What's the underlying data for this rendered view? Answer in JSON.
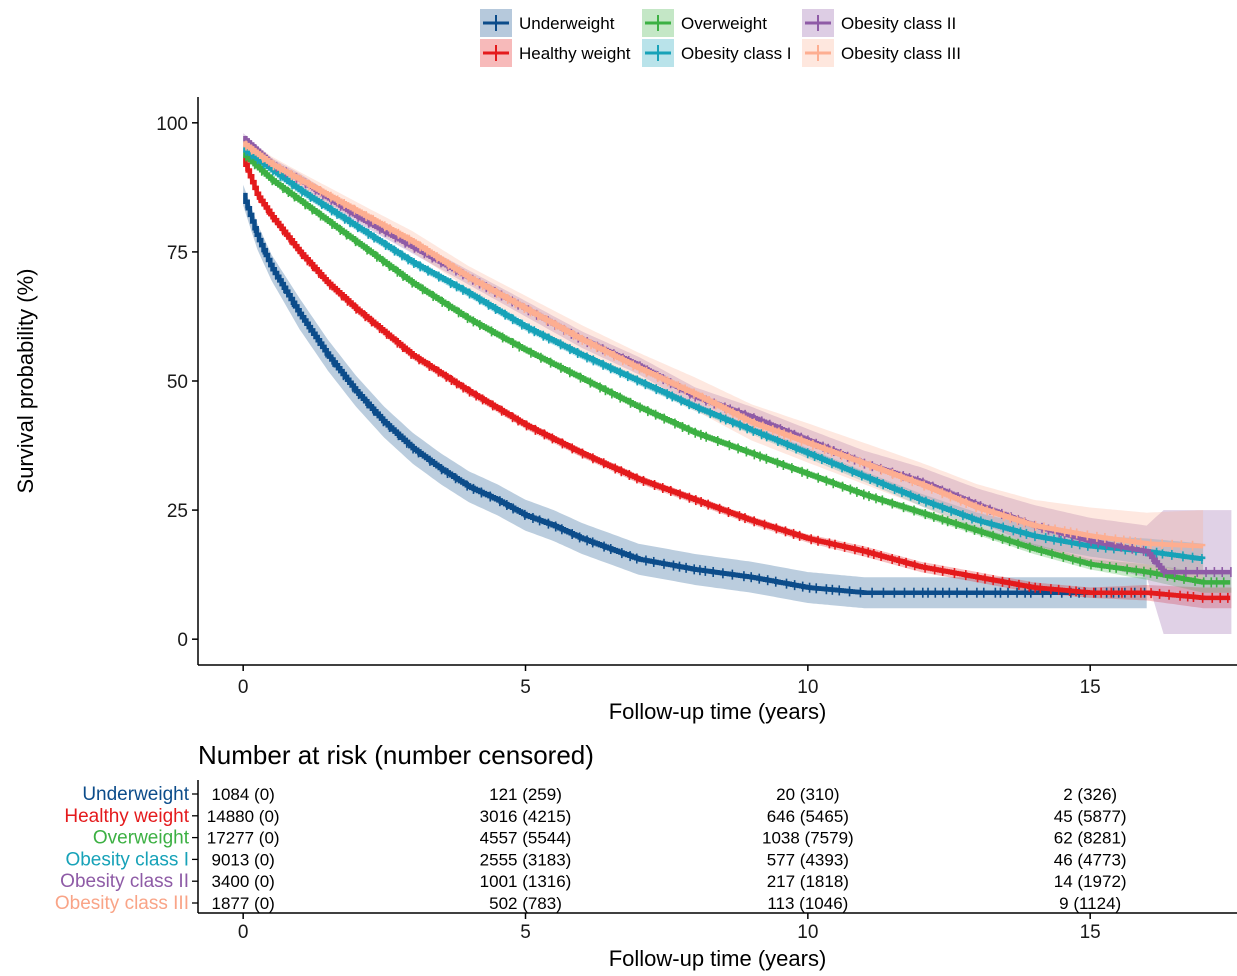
{
  "chart_data": [
    {
      "type": "line",
      "subtype": "kaplan-meier survival curve with confidence bands and censor marks",
      "xlabel": "Follow-up time (years)",
      "ylabel": "Survival probability (%)",
      "xlim": [
        -0.8,
        17.6
      ],
      "ylim": [
        -5,
        105
      ],
      "x_ticks": [
        0,
        5,
        10,
        15
      ],
      "y_ticks": [
        0,
        25,
        50,
        75,
        100
      ],
      "grid": false,
      "legend_position": "top",
      "series": [
        {
          "name": "Underweight",
          "color": "#0C4C8A",
          "x": [
            0,
            0.25,
            0.5,
            1,
            1.5,
            2,
            2.5,
            3,
            3.5,
            4,
            4.5,
            5,
            5.5,
            6,
            6.5,
            7,
            8,
            9,
            10,
            11,
            12,
            13,
            14,
            15,
            16
          ],
          "y": [
            86,
            78,
            72,
            63,
            55,
            48,
            42,
            37,
            33,
            29.5,
            27,
            24,
            22,
            19.5,
            17.5,
            15.5,
            13.5,
            12,
            10,
            9,
            9,
            9,
            9,
            9,
            9
          ],
          "ci_half_width": [
            2,
            2.5,
            2.5,
            3,
            3,
            3,
            3,
            3,
            3,
            3,
            3,
            3,
            3,
            3,
            3,
            3,
            3,
            3,
            3,
            3,
            3,
            3,
            3,
            3,
            3
          ]
        },
        {
          "name": "Healthy weight",
          "color": "#E41A1C",
          "x": [
            0,
            0.25,
            0.5,
            1,
            1.5,
            2,
            3,
            4,
            5,
            6,
            7,
            8,
            9,
            10,
            11,
            12,
            13,
            14,
            15,
            16,
            17,
            17.5
          ],
          "y": [
            93,
            86,
            82,
            75,
            69,
            64,
            55,
            48,
            41.5,
            36,
            31,
            27,
            23,
            19.5,
            17,
            14,
            12,
            10,
            9,
            9,
            8,
            8
          ],
          "ci_half_width": [
            0.8,
            0.8,
            0.8,
            0.8,
            0.8,
            0.8,
            0.8,
            0.8,
            0.8,
            0.8,
            0.8,
            0.8,
            0.8,
            0.8,
            1,
            1,
            1,
            1,
            1,
            1.5,
            2,
            2
          ]
        },
        {
          "name": "Overweight",
          "color": "#3CB043",
          "x": [
            0,
            0.5,
            1,
            2,
            3,
            4,
            5,
            6,
            7,
            8,
            9,
            10,
            11,
            12,
            13,
            14,
            15,
            16,
            17,
            17.5
          ],
          "y": [
            94,
            89,
            85,
            77,
            69,
            62,
            56,
            50.5,
            45,
            40,
            36,
            32,
            28,
            24.5,
            21,
            17.5,
            14.5,
            13,
            11,
            11
          ],
          "ci_half_width": [
            0.6,
            0.6,
            0.6,
            0.6,
            0.6,
            0.6,
            0.6,
            0.6,
            0.6,
            0.6,
            0.6,
            0.6,
            0.6,
            0.8,
            0.8,
            1,
            1,
            1.5,
            2,
            2
          ]
        },
        {
          "name": "Obesity class I",
          "color": "#17A2B8",
          "x": [
            0,
            0.5,
            1,
            2,
            3,
            4,
            5,
            6,
            7,
            8,
            9,
            10,
            11,
            12,
            13,
            14,
            15,
            16,
            17
          ],
          "y": [
            95,
            91,
            87,
            80,
            73,
            67,
            60.5,
            55,
            50,
            45,
            40.5,
            36,
            31.5,
            27,
            23,
            20,
            18,
            17,
            15.5
          ],
          "ci_half_width": [
            0.8,
            0.8,
            0.8,
            0.8,
            0.8,
            0.8,
            0.8,
            0.8,
            0.8,
            0.8,
            0.8,
            1,
            1,
            1.2,
            1.5,
            2,
            2,
            2.5,
            3
          ]
        },
        {
          "name": "Obesity class II",
          "color": "#8E5BA6",
          "x": [
            0,
            0.5,
            1,
            2,
            3,
            4,
            5,
            6,
            7,
            8,
            9,
            10,
            11,
            12,
            13,
            14,
            15,
            16,
            16.3,
            17.5
          ],
          "y": [
            97,
            92,
            89,
            82,
            76,
            70,
            64,
            58,
            53,
            47,
            43,
            38.5,
            34,
            30.5,
            26,
            22,
            19,
            17,
            13,
            13
          ],
          "ci_half_width": [
            1,
            1.2,
            1.2,
            1.2,
            1.3,
            1.4,
            1.5,
            1.6,
            1.7,
            1.8,
            2,
            2.2,
            2.5,
            2.8,
            3.2,
            4,
            4.5,
            5,
            12,
            12
          ]
        },
        {
          "name": "Obesity class III",
          "color": "#FDAE91",
          "x": [
            0,
            0.5,
            1,
            2,
            3,
            4,
            5,
            6,
            7,
            8,
            9,
            10,
            11,
            12,
            13,
            14,
            15,
            16,
            17
          ],
          "y": [
            96,
            92,
            89,
            83,
            77,
            70,
            64,
            58,
            52.5,
            47.5,
            42,
            38,
            34,
            30,
            25.5,
            22,
            20,
            18.5,
            18
          ],
          "ci_half_width": [
            1.5,
            1.5,
            1.5,
            1.7,
            2,
            2.2,
            2.5,
            2.8,
            3,
            3.2,
            3.5,
            3.8,
            4,
            4.2,
            4.5,
            5,
            5.5,
            6,
            7
          ]
        }
      ]
    },
    {
      "type": "table",
      "title": "Number at risk (number censored)",
      "xlabel": "Follow-up time (years)",
      "x_ticks": [
        0,
        5,
        10,
        15
      ],
      "rows": [
        {
          "name": "Underweight",
          "color": "#0C4C8A",
          "values": [
            "1084 (0)",
            "121 (259)",
            "20 (310)",
            "2 (326)"
          ]
        },
        {
          "name": "Healthy weight",
          "color": "#E41A1C",
          "values": [
            "14880 (0)",
            "3016 (4215)",
            "646 (5465)",
            "45 (5877)"
          ]
        },
        {
          "name": "Overweight",
          "color": "#3CB043",
          "values": [
            "17277 (0)",
            "4557 (5544)",
            "1038 (7579)",
            "62 (8281)"
          ]
        },
        {
          "name": "Obesity class I",
          "color": "#17A2B8",
          "values": [
            "9013 (0)",
            "2555 (3183)",
            "577 (4393)",
            "46 (4773)"
          ]
        },
        {
          "name": "Obesity class II",
          "color": "#8E5BA6",
          "values": [
            "3400 (0)",
            "1001 (1316)",
            "217 (1818)",
            "14 (1972)"
          ]
        },
        {
          "name": "Obesity class III",
          "color": "#F9A487",
          "values": [
            "1877 (0)",
            "502 (783)",
            "113 (1046)",
            "9 (1124)"
          ]
        }
      ]
    }
  ]
}
